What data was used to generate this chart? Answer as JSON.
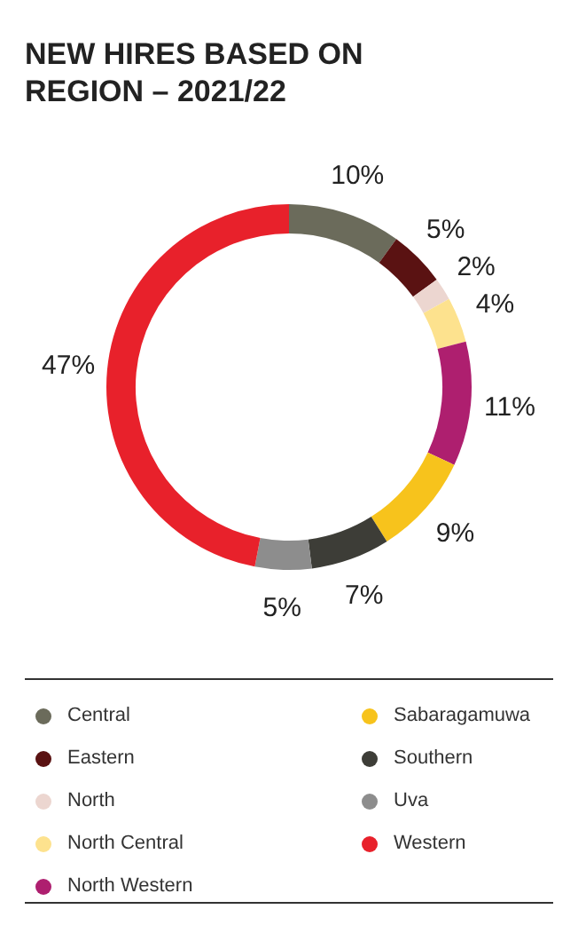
{
  "chart_data": {
    "type": "donut",
    "title": "NEW HIRES BASED ON REGION – 2021/22",
    "categories": [
      "Central",
      "Eastern",
      "North",
      "North Central",
      "North Western",
      "Sabaragamuwa",
      "Southern",
      "Uva",
      "Western"
    ],
    "values": [
      10,
      5,
      2,
      4,
      11,
      9,
      7,
      5,
      47
    ],
    "value_labels": [
      "10%",
      "5%",
      "2%",
      "4%",
      "11%",
      "9%",
      "7%",
      "5%",
      "47%"
    ],
    "colors": [
      "#6b6b5b",
      "#5a1212",
      "#ecd6d0",
      "#fde28e",
      "#ae1f6f",
      "#f7c31c",
      "#3d3d37",
      "#8d8d8d",
      "#e8212b"
    ],
    "legend": "bottom"
  }
}
